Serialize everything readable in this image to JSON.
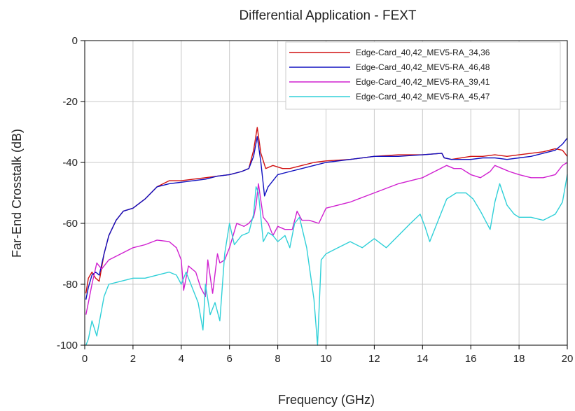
{
  "chart_data": {
    "type": "line",
    "title": "Differential Application - FEXT",
    "xlabel": "Frequency (GHz)",
    "ylabel": "Far-End Crosstalk (dB)",
    "xlim": [
      0,
      20
    ],
    "ylim": [
      -100,
      0
    ],
    "xticks": [
      0,
      2,
      4,
      6,
      8,
      10,
      12,
      14,
      16,
      18,
      20
    ],
    "yticks": [
      0,
      -20,
      -40,
      -60,
      -80,
      -100
    ],
    "grid": true,
    "legend_position": "top-right",
    "series": [
      {
        "name": "Edge-Card_40,42_MEV5-RA_34,36",
        "color": "#d01010",
        "x": [
          0.05,
          0.15,
          0.3,
          0.45,
          0.6,
          0.8,
          1.0,
          1.3,
          1.6,
          2.0,
          2.5,
          3.0,
          3.5,
          4.0,
          4.5,
          5.0,
          5.5,
          6.0,
          6.5,
          6.8,
          7.0,
          7.15,
          7.3,
          7.5,
          7.8,
          8.2,
          8.5,
          9.0,
          9.5,
          10.0,
          11.0,
          12.0,
          13.0,
          14.0,
          14.8,
          14.9,
          15.2,
          16.0,
          16.5,
          17.0,
          17.5,
          18.0,
          18.5,
          19.0,
          19.5,
          19.8,
          20.0
        ],
        "y": [
          -83,
          -78,
          -76,
          -78,
          -79,
          -70,
          -64,
          -59,
          -56,
          -55,
          -52,
          -48,
          -46,
          -46,
          -45.5,
          -45,
          -44.5,
          -44,
          -43,
          -42,
          -36,
          -28.5,
          -37,
          -42,
          -41,
          -42,
          -42,
          -41,
          -40,
          -39.5,
          -39,
          -38,
          -37.5,
          -37.5,
          -37,
          -38.5,
          -39,
          -38,
          -38,
          -37.5,
          -38,
          -37.5,
          -37,
          -36.5,
          -35.5,
          -36,
          -38
        ]
      },
      {
        "name": "Edge-Card_40,42_MEV5-RA_46,48",
        "color": "#1010c0",
        "x": [
          0.05,
          0.15,
          0.3,
          0.45,
          0.6,
          0.8,
          1.0,
          1.3,
          1.6,
          2.0,
          2.5,
          3.0,
          3.5,
          4.0,
          4.5,
          5.0,
          5.5,
          6.0,
          6.5,
          6.8,
          7.0,
          7.15,
          7.3,
          7.45,
          7.6,
          8.0,
          8.5,
          9.0,
          9.5,
          10.0,
          11.0,
          12.0,
          13.0,
          14.0,
          14.8,
          14.9,
          15.2,
          16.0,
          16.5,
          17.0,
          17.5,
          18.0,
          18.5,
          19.0,
          19.5,
          19.8,
          20.0
        ],
        "y": [
          -85,
          -81,
          -77,
          -76,
          -77,
          -70,
          -64,
          -59,
          -56,
          -55,
          -52,
          -48,
          -47,
          -46.5,
          -46,
          -45.5,
          -44.5,
          -44,
          -43,
          -42,
          -38,
          -31.5,
          -40,
          -51,
          -48,
          -44,
          -43,
          -42,
          -41,
          -40,
          -39,
          -38,
          -38,
          -37.5,
          -37,
          -38.5,
          -39,
          -39,
          -38.5,
          -38.5,
          -39,
          -38.5,
          -38,
          -37,
          -36,
          -34,
          -32
        ]
      },
      {
        "name": "Edge-Card_40,42_MEV5-RA_39,41",
        "color": "#d020d0",
        "x": [
          0.05,
          0.15,
          0.3,
          0.5,
          0.7,
          1.0,
          1.5,
          2.0,
          2.5,
          3.0,
          3.5,
          3.8,
          4.0,
          4.1,
          4.3,
          4.6,
          4.8,
          5.0,
          5.1,
          5.3,
          5.5,
          5.6,
          5.8,
          6.0,
          6.3,
          6.6,
          6.8,
          7.0,
          7.1,
          7.2,
          7.4,
          7.6,
          7.8,
          8.0,
          8.3,
          8.6,
          8.8,
          9.0,
          9.3,
          9.7,
          10.0,
          11.0,
          12.0,
          13.0,
          14.0,
          14.5,
          15.0,
          15.3,
          15.6,
          16.0,
          16.4,
          16.8,
          17.0,
          17.3,
          17.6,
          18.0,
          18.5,
          19.0,
          19.5,
          19.8,
          20.0
        ],
        "y": [
          -90,
          -86,
          -80,
          -73,
          -75,
          -72,
          -70,
          -68,
          -67,
          -65.5,
          -66,
          -68,
          -72,
          -82,
          -74,
          -76,
          -81,
          -84,
          -72,
          -83,
          -70,
          -73,
          -72,
          -68,
          -60,
          -61,
          -60,
          -58,
          -54,
          -47,
          -58,
          -60,
          -64,
          -61,
          -62,
          -62,
          -56,
          -59,
          -59,
          -60,
          -55,
          -53,
          -50,
          -47,
          -45,
          -43,
          -41,
          -42,
          -42,
          -44,
          -45,
          -43,
          -41,
          -42,
          -43,
          -44,
          -45,
          -45,
          -44,
          -41,
          -40
        ]
      },
      {
        "name": "Edge-Card_40,42_MEV5-RA_45,47",
        "color": "#30d0d8",
        "x": [
          0.05,
          0.15,
          0.3,
          0.5,
          0.8,
          1.0,
          1.5,
          2.0,
          2.5,
          3.0,
          3.5,
          3.8,
          4.0,
          4.2,
          4.5,
          4.7,
          4.9,
          5.0,
          5.2,
          5.4,
          5.6,
          5.8,
          6.0,
          6.2,
          6.5,
          6.8,
          7.0,
          7.1,
          7.2,
          7.4,
          7.6,
          7.8,
          8.0,
          8.3,
          8.5,
          8.7,
          8.9,
          9.2,
          9.5,
          9.65,
          9.8,
          10.0,
          10.5,
          11.0,
          11.5,
          12.0,
          12.5,
          13.0,
          13.5,
          13.9,
          14.1,
          14.3,
          14.6,
          15.0,
          15.4,
          15.8,
          16.1,
          16.4,
          16.8,
          17.0,
          17.2,
          17.5,
          17.8,
          18.0,
          18.5,
          19.0,
          19.5,
          19.8,
          20.0
        ],
        "y": [
          -100,
          -98,
          -92,
          -97,
          -84,
          -80,
          -79,
          -78,
          -78,
          -77,
          -76,
          -77,
          -80,
          -76,
          -82,
          -86,
          -95,
          -80,
          -90,
          -86,
          -92,
          -70,
          -60,
          -67,
          -64,
          -63,
          -57,
          -48,
          -50,
          -66,
          -63,
          -64,
          -66,
          -64,
          -68,
          -60,
          -58,
          -68,
          -85,
          -100,
          -72,
          -70,
          -68,
          -66,
          -68,
          -65,
          -68,
          -64,
          -60,
          -57,
          -61,
          -66,
          -60,
          -52,
          -50,
          -50,
          -52,
          -56,
          -62,
          -53,
          -47,
          -54,
          -57,
          -58,
          -58,
          -59,
          -57,
          -53,
          -44
        ]
      }
    ]
  }
}
